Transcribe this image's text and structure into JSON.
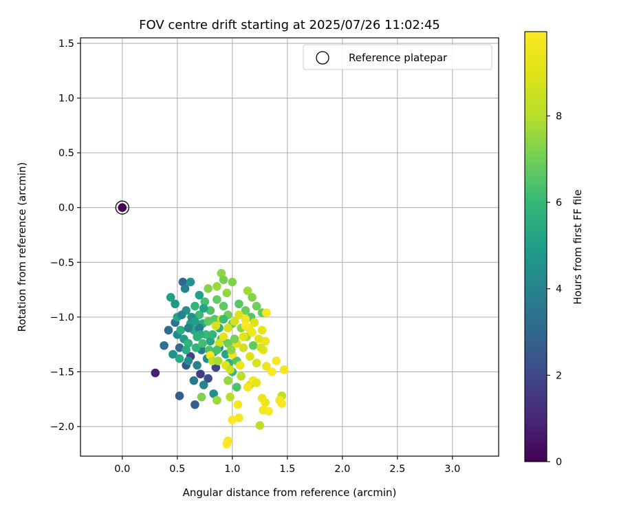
{
  "chart_data": {
    "type": "scatter",
    "title": "FOV centre drift starting at 2025/07/26 11:02:45",
    "xlabel": "Angular distance from reference (arcmin)",
    "ylabel": "Rotation from reference (arcmin)",
    "xlim": [
      -0.38,
      3.42
    ],
    "ylim": [
      -2.27,
      1.55
    ],
    "xticks": [
      0.0,
      0.5,
      1.0,
      1.5,
      2.0,
      2.5,
      3.0
    ],
    "xtick_labels": [
      "0.0",
      "0.5",
      "1.0",
      "1.5",
      "2.0",
      "2.5",
      "3.0"
    ],
    "yticks": [
      1.5,
      1.0,
      0.5,
      0.0,
      -0.5,
      -1.0,
      -1.5,
      -2.0
    ],
    "ytick_labels": [
      "1.5",
      "1.0",
      "0.5",
      "0.0",
      "−0.5",
      "−1.0",
      "−1.5",
      "−2.0"
    ],
    "grid": true,
    "legend": {
      "entries": [
        "Reference platepar"
      ],
      "placement": "top-right"
    },
    "colormap": "viridis",
    "colorbar": {
      "label": "Hours from first FF file",
      "range": [
        0,
        9.95
      ],
      "ticks": [
        0,
        2,
        4,
        6,
        8
      ],
      "tick_labels": [
        "0",
        "2",
        "4",
        "6",
        "8"
      ]
    },
    "reference_point": {
      "x": 0.0,
      "y": 0.0,
      "marker": "open-circle"
    },
    "points": [
      [
        0.0,
        0.0,
        0.0
      ],
      [
        0.3,
        -1.51,
        0.8
      ],
      [
        0.52,
        -1.72,
        2.6
      ],
      [
        0.66,
        -1.8,
        2.7
      ],
      [
        0.42,
        -1.12,
        3.1
      ],
      [
        0.38,
        -1.26,
        3.3
      ],
      [
        0.55,
        -0.68,
        3.0
      ],
      [
        0.58,
        -1.44,
        2.4
      ],
      [
        0.62,
        -1.36,
        1.8
      ],
      [
        0.71,
        -1.52,
        1.6
      ],
      [
        0.78,
        -1.56,
        2.2
      ],
      [
        0.85,
        -1.46,
        1.9
      ],
      [
        0.65,
        -1.58,
        3.6
      ],
      [
        0.74,
        -1.62,
        4.1
      ],
      [
        0.83,
        -1.7,
        4.4
      ],
      [
        0.72,
        -1.3,
        3.8
      ],
      [
        0.48,
        -1.05,
        3.5
      ],
      [
        0.5,
        -1.16,
        4.2
      ],
      [
        0.52,
        -1.28,
        3.2
      ],
      [
        0.46,
        -1.34,
        4.5
      ],
      [
        0.44,
        -0.82,
        5.0
      ],
      [
        0.48,
        -0.88,
        4.8
      ],
      [
        0.5,
        -1.0,
        5.3
      ],
      [
        0.53,
        -1.12,
        5.6
      ],
      [
        0.56,
        -1.2,
        4.9
      ],
      [
        0.6,
        -1.24,
        5.8
      ],
      [
        0.58,
        -0.94,
        4.6
      ],
      [
        0.62,
        -1.06,
        5.1
      ],
      [
        0.65,
        -1.12,
        5.4
      ],
      [
        0.68,
        -1.18,
        5.7
      ],
      [
        0.66,
        -0.9,
        5.9
      ],
      [
        0.7,
        -0.98,
        6.1
      ],
      [
        0.73,
        -1.06,
        5.5
      ],
      [
        0.76,
        -1.16,
        6.0
      ],
      [
        0.8,
        -1.22,
        5.2
      ],
      [
        0.75,
        -0.86,
        6.3
      ],
      [
        0.8,
        -0.94,
        6.4
      ],
      [
        0.84,
        -1.02,
        6.6
      ],
      [
        0.88,
        -1.1,
        5.6
      ],
      [
        0.9,
        -1.2,
        6.2
      ],
      [
        0.62,
        -0.68,
        4.7
      ],
      [
        0.57,
        -0.74,
        3.9
      ],
      [
        0.7,
        -0.8,
        5.0
      ],
      [
        0.6,
        -1.4,
        4.3
      ],
      [
        0.68,
        -1.44,
        4.0
      ],
      [
        0.77,
        -1.38,
        4.6
      ],
      [
        0.83,
        -1.32,
        5.0
      ],
      [
        0.88,
        -1.28,
        4.5
      ],
      [
        0.94,
        -1.34,
        5.3
      ],
      [
        0.97,
        -1.42,
        5.7
      ],
      [
        1.0,
        -1.5,
        6.0
      ],
      [
        1.04,
        -1.4,
        6.5
      ],
      [
        0.52,
        -1.38,
        5.4
      ],
      [
        0.67,
        -1.28,
        5.9
      ],
      [
        0.73,
        -1.24,
        6.2
      ],
      [
        0.79,
        -1.3,
        6.4
      ],
      [
        0.86,
        -0.84,
        6.8
      ],
      [
        0.92,
        -0.9,
        6.7
      ],
      [
        0.96,
        -0.98,
        7.0
      ],
      [
        1.0,
        -1.06,
        6.9
      ],
      [
        0.78,
        -0.74,
        7.3
      ],
      [
        0.86,
        -0.72,
        7.6
      ],
      [
        0.9,
        -0.6,
        7.4
      ],
      [
        0.92,
        -0.66,
        7.1
      ],
      [
        1.0,
        -0.68,
        7.2
      ],
      [
        0.95,
        -0.78,
        7.5
      ],
      [
        1.06,
        -0.88,
        6.6
      ],
      [
        1.12,
        -0.94,
        6.9
      ],
      [
        1.14,
        -0.76,
        7.7
      ],
      [
        1.18,
        -0.82,
        7.3
      ],
      [
        1.22,
        -0.9,
        7.0
      ],
      [
        1.27,
        -0.96,
        6.8
      ],
      [
        1.17,
        -1.0,
        6.5
      ],
      [
        1.08,
        -1.1,
        7.4
      ],
      [
        1.13,
        -1.18,
        7.8
      ],
      [
        1.19,
        -1.26,
        6.7
      ],
      [
        0.72,
        -1.73,
        7.2
      ],
      [
        0.86,
        -1.76,
        7.6
      ],
      [
        0.98,
        -1.73,
        8.0
      ],
      [
        0.96,
        -1.58,
        7.5
      ],
      [
        1.04,
        -1.64,
        6.4
      ],
      [
        1.08,
        -1.54,
        8.1
      ],
      [
        1.16,
        -1.62,
        8.4
      ],
      [
        1.25,
        -1.99,
        8.2
      ],
      [
        1.45,
        -1.72,
        8.3
      ],
      [
        1.05,
        -1.8,
        9.7
      ],
      [
        1.06,
        -1.92,
        9.8
      ],
      [
        1.0,
        -1.94,
        9.9
      ],
      [
        0.96,
        -2.13,
        9.8
      ],
      [
        0.95,
        -2.16,
        9.9
      ],
      [
        1.3,
        -1.78,
        9.4
      ],
      [
        1.33,
        -1.86,
        9.9
      ],
      [
        1.28,
        -1.85,
        9.7
      ],
      [
        1.43,
        -1.76,
        9.6
      ],
      [
        1.45,
        -1.79,
        9.8
      ],
      [
        1.27,
        -1.74,
        9.5
      ],
      [
        1.19,
        -1.58,
        9.6
      ],
      [
        1.22,
        -1.6,
        9.3
      ],
      [
        1.14,
        -1.64,
        9.7
      ],
      [
        1.31,
        -1.45,
        9.4
      ],
      [
        1.36,
        -1.5,
        9.9
      ],
      [
        1.4,
        -1.4,
        9.8
      ],
      [
        1.47,
        -1.48,
        9.6
      ],
      [
        1.28,
        -1.3,
        9.2
      ],
      [
        1.3,
        -1.22,
        9.5
      ],
      [
        1.27,
        -1.12,
        9.3
      ],
      [
        1.31,
        -0.96,
        9.8
      ],
      [
        1.2,
        -1.05,
        9.0
      ],
      [
        1.15,
        -1.1,
        9.4
      ],
      [
        1.1,
        -1.18,
        9.1
      ],
      [
        1.04,
        -1.24,
        8.9
      ],
      [
        0.96,
        -1.1,
        8.8
      ],
      [
        0.92,
        -1.18,
        9.2
      ],
      [
        0.88,
        -1.24,
        8.5
      ],
      [
        0.85,
        -1.08,
        8.7
      ],
      [
        1.1,
        -1.28,
        8.6
      ],
      [
        1.16,
        -1.36,
        9.0
      ],
      [
        1.22,
        -1.42,
        8.8
      ],
      [
        1.07,
        -1.44,
        9.3
      ],
      [
        1.0,
        -1.34,
        9.5
      ],
      [
        0.94,
        -1.44,
        9.1
      ],
      [
        0.98,
        -1.48,
        8.4
      ],
      [
        0.8,
        -1.35,
        9.6
      ],
      [
        0.82,
        -1.4,
        8.3
      ],
      [
        1.02,
        -1.04,
        8.6
      ],
      [
        1.06,
        -0.98,
        8.9
      ],
      [
        1.12,
        -1.02,
        9.6
      ],
      [
        0.9,
        -1.02,
        8.5
      ],
      [
        1.12,
        -1.08,
        9.8
      ],
      [
        1.18,
        -1.14,
        9.6
      ],
      [
        1.24,
        -1.2,
        9.1
      ],
      [
        1.26,
        -1.28,
        8.7
      ],
      [
        0.6,
        -1.1,
        4.0
      ],
      [
        0.63,
        -1.0,
        4.4
      ],
      [
        0.7,
        -1.1,
        3.7
      ],
      [
        0.54,
        -0.98,
        4.1
      ],
      [
        0.58,
        -1.3,
        5.5
      ],
      [
        0.66,
        -1.04,
        5.0
      ],
      [
        0.74,
        -0.92,
        5.2
      ],
      [
        0.82,
        -1.16,
        5.9
      ],
      [
        0.86,
        -1.3,
        6.3
      ],
      [
        0.92,
        -1.02,
        6.1
      ],
      [
        0.78,
        -1.04,
        6.7
      ],
      [
        0.71,
        -1.16,
        5.6
      ],
      [
        0.96,
        -1.24,
        6.9
      ],
      [
        1.02,
        -1.2,
        7.1
      ],
      [
        0.99,
        -1.3,
        7.4
      ],
      [
        0.87,
        -1.4,
        7.8
      ]
    ]
  }
}
